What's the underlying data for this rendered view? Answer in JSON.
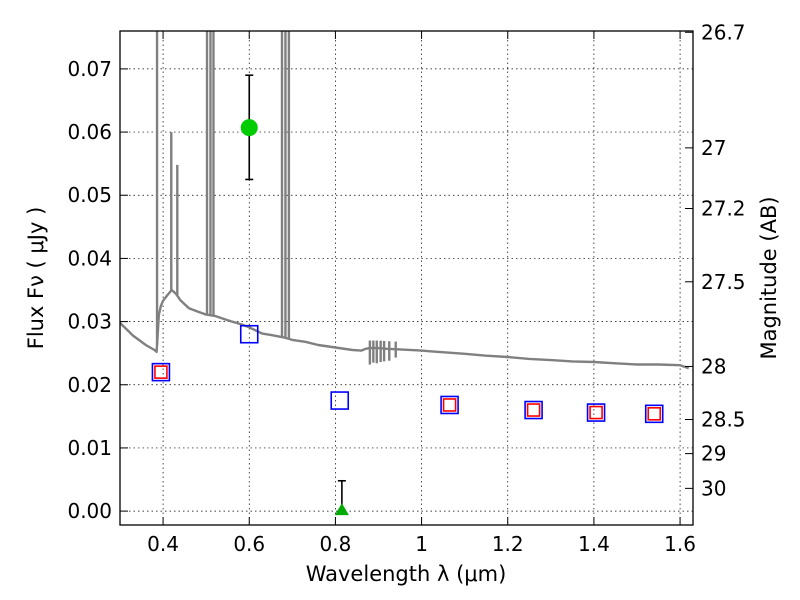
{
  "chart_data": {
    "type": "scatter",
    "xlabel": "Wavelength  λ (μm)",
    "ylabel": "Flux  Fν  ( μJy )",
    "y2label": "Magnitude (AB)",
    "xlim": [
      0.3,
      1.63
    ],
    "ylim": [
      -0.0022,
      0.076
    ],
    "grid": true,
    "x_ticks": [
      0.4,
      0.6,
      0.8,
      1.0,
      1.2,
      1.4,
      1.6
    ],
    "x_tick_labels": [
      "0.4",
      "0.6",
      "0.8",
      "1",
      "1.2",
      "1.4",
      "1.6"
    ],
    "y_ticks": [
      0.0,
      0.01,
      0.02,
      0.03,
      0.04,
      0.05,
      0.06,
      0.07
    ],
    "y_tick_labels": [
      "0.00",
      "0.01",
      "0.02",
      "0.03",
      "0.04",
      "0.05",
      "0.06",
      "0.07"
    ],
    "y2_ticks": [
      {
        "label": "26.7",
        "flux": 0.0758
      },
      {
        "label": "27",
        "flux": 0.0575
      },
      {
        "label": "27.2",
        "flux": 0.0479
      },
      {
        "label": "27.5",
        "flux": 0.0363
      },
      {
        "label": "28",
        "flux": 0.0229
      },
      {
        "label": "28.5",
        "flux": 0.0145
      },
      {
        "label": "29",
        "flux": 0.0091
      },
      {
        "label": "30",
        "flux": 0.0036
      }
    ],
    "series": [
      {
        "type": "line",
        "color": "#808080",
        "x": [
          0.3,
          0.33,
          0.36,
          0.38,
          0.385,
          0.388,
          0.39,
          0.395,
          0.4,
          0.41,
          0.42,
          0.43,
          0.44,
          0.46,
          0.48,
          0.5,
          0.52,
          0.55,
          0.58,
          0.6,
          0.63,
          0.65,
          0.68,
          0.7,
          0.73,
          0.76,
          0.8,
          0.84,
          0.86,
          0.87,
          0.88,
          0.9,
          0.92,
          0.95,
          1.0,
          1.02,
          1.1,
          1.15,
          1.2,
          1.25,
          1.3,
          1.35,
          1.4,
          1.45,
          1.5,
          1.55,
          1.6,
          1.62
        ],
        "y": [
          0.0298,
          0.0278,
          0.0263,
          0.0255,
          0.0252,
          0.0285,
          0.031,
          0.0325,
          0.0333,
          0.0342,
          0.035,
          0.0344,
          0.0334,
          0.0321,
          0.0316,
          0.0311,
          0.0309,
          0.0302,
          0.0296,
          0.0291,
          0.0281,
          0.0279,
          0.0275,
          0.0271,
          0.0268,
          0.0263,
          0.0259,
          0.0255,
          0.0254,
          0.0257,
          0.0258,
          0.0258,
          0.0257,
          0.0256,
          0.0254,
          0.0253,
          0.0249,
          0.0246,
          0.0244,
          0.0241,
          0.0239,
          0.0237,
          0.0236,
          0.0234,
          0.0232,
          0.0232,
          0.0231,
          0.0226
        ],
        "spikes": [
          {
            "x": 0.386,
            "y": 0.076
          },
          {
            "x": 0.419,
            "y": 0.06
          },
          {
            "x": 0.433,
            "y": 0.0548
          },
          {
            "x": 0.502,
            "y": 0.076
          },
          {
            "x": 0.51,
            "y": 0.076
          },
          {
            "x": 0.517,
            "y": 0.076
          },
          {
            "x": 0.676,
            "y": 0.076
          },
          {
            "x": 0.684,
            "y": 0.076
          },
          {
            "x": 0.692,
            "y": 0.076
          }
        ],
        "dips": [
          {
            "x": 0.88,
            "y": 0.0232
          },
          {
            "x": 0.888,
            "y": 0.0235
          },
          {
            "x": 0.896,
            "y": 0.0234
          },
          {
            "x": 0.905,
            "y": 0.0236
          },
          {
            "x": 0.913,
            "y": 0.0237
          },
          {
            "x": 0.925,
            "y": 0.0238
          },
          {
            "x": 0.94,
            "y": 0.0243
          }
        ]
      },
      {
        "type": "square",
        "edgecolor": "#0000ff",
        "x": [
          0.395,
          0.6,
          0.81,
          1.065,
          1.26,
          1.405,
          1.54
        ],
        "y": [
          0.022,
          0.028,
          0.0175,
          0.0168,
          0.016,
          0.0156,
          0.0154
        ]
      },
      {
        "type": "square",
        "edgecolor": "#ff0000",
        "size": "small",
        "x": [
          0.395,
          1.065,
          1.26,
          1.405,
          1.54
        ],
        "y": [
          0.022,
          0.0168,
          0.016,
          0.0156,
          0.0154
        ]
      },
      {
        "type": "point",
        "color": "#00cc00",
        "x": [
          0.6
        ],
        "y": [
          0.0607
        ],
        "yerr_low": [
          0.0525
        ],
        "yerr_high": [
          0.069
        ]
      },
      {
        "type": "triangle",
        "color": "#00aa00",
        "x": [
          0.815
        ],
        "y": [
          0.0
        ],
        "yerr_low": [
          0.0
        ],
        "yerr_high": [
          0.0048
        ]
      }
    ]
  }
}
